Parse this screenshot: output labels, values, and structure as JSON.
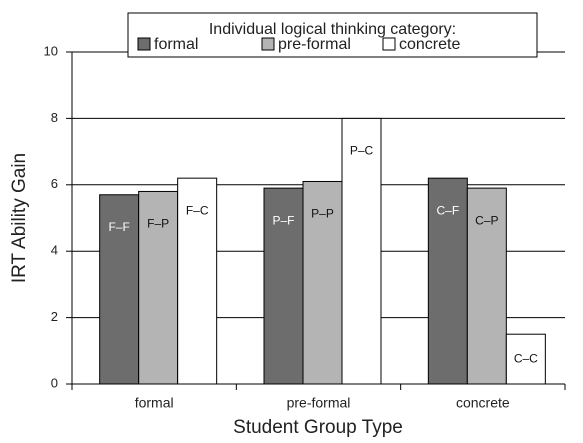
{
  "chart_data": {
    "type": "bar",
    "xlabel": "Student Group Type",
    "ylabel": "IRT Ability Gain",
    "categories": [
      "formal",
      "pre-formal",
      "concrete"
    ],
    "legend_title": "Individual logical thinking category:",
    "series": [
      {
        "name": "formal",
        "color": "#6d6d6d",
        "label_color": "#ffffff",
        "values": [
          5.7,
          5.9,
          6.2
        ],
        "labels": [
          "F–F",
          "P–F",
          "C–F"
        ]
      },
      {
        "name": "pre-formal",
        "color": "#b4b4b4",
        "label_color": "#111111",
        "values": [
          5.8,
          6.1,
          5.9
        ],
        "labels": [
          "F–P",
          "P–P",
          "C–P"
        ]
      },
      {
        "name": "concrete",
        "color": "#ffffff",
        "label_color": "#111111",
        "values": [
          6.2,
          8.0,
          1.5
        ],
        "labels": [
          "F–C",
          "P–C",
          "C–C"
        ]
      }
    ],
    "ylim": [
      0,
      10
    ],
    "yticks": [
      0,
      2,
      4,
      6,
      8,
      10
    ],
    "grid": true,
    "legend": "top"
  }
}
